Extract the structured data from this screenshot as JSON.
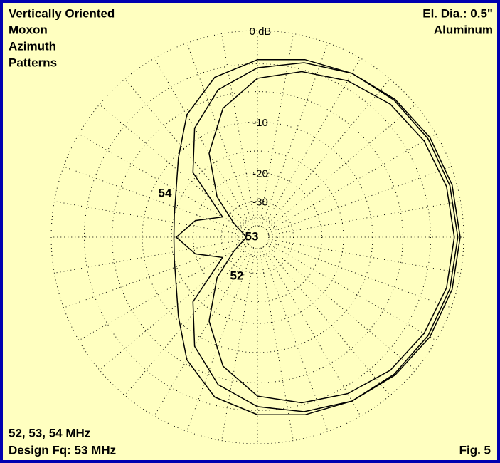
{
  "chart_data": {
    "type": "polar",
    "scale": "arrl-log",
    "title_lines": [
      "Vertically Oriented",
      "Moxon",
      "Azimuth",
      "Patterns"
    ],
    "corner_right": [
      "El. Dia.: 0.5\"",
      "Aluminum"
    ],
    "footer_left": [
      "52, 53, 54 MHz",
      "Design Fq: 53 MHz"
    ],
    "footer_right": "Fig. 5",
    "theta": [
      0,
      15,
      30,
      45,
      60,
      75,
      90,
      105,
      120,
      135,
      150,
      165,
      180,
      195,
      210,
      225,
      240,
      255,
      270,
      285,
      300,
      315,
      330,
      345
    ],
    "rlim": [
      -50,
      0
    ],
    "rticks": [
      {
        "value": 0,
        "label": "0 dB"
      },
      -10,
      -20,
      -30
    ],
    "minor_rings": [
      -3,
      -6,
      -15,
      -40,
      -50
    ],
    "spoke_step": 10,
    "series": [
      {
        "name": "54",
        "color": "#000000",
        "values": [
          -0.5,
          -0.6,
          -0.8,
          -1.1,
          -1.5,
          -2.0,
          -2.6,
          -3.8,
          -6.5,
          -10.5,
          -13.5,
          -15,
          -15.5,
          -15,
          -13.5,
          -10.5,
          -6.5,
          -3.8,
          -2.6,
          -2.0,
          -1.5,
          -1.1,
          -0.8,
          -0.6
        ]
      },
      {
        "name": "53",
        "color": "#000000",
        "values": [
          -0.8,
          -0.9,
          -1.2,
          -1.6,
          -2.3,
          -3.2,
          -4.5,
          -7.5,
          -13,
          -22,
          -35,
          -45,
          -50,
          -45,
          -35,
          -22,
          -13,
          -7.5,
          -4.5,
          -3.2,
          -2.3,
          -1.6,
          -1.2,
          -0.9
        ]
      },
      {
        "name": "52",
        "color": "#000000",
        "values": [
          -0.3,
          -0.4,
          -0.6,
          -1.0,
          -1.5,
          -2.3,
          -3.4,
          -5.2,
          -8.5,
          -14,
          -28,
          -20,
          -16,
          -20,
          -28,
          -14,
          -8.5,
          -5.2,
          -3.4,
          -2.3,
          -1.5,
          -1.0,
          -0.6,
          -0.4
        ]
      }
    ]
  }
}
